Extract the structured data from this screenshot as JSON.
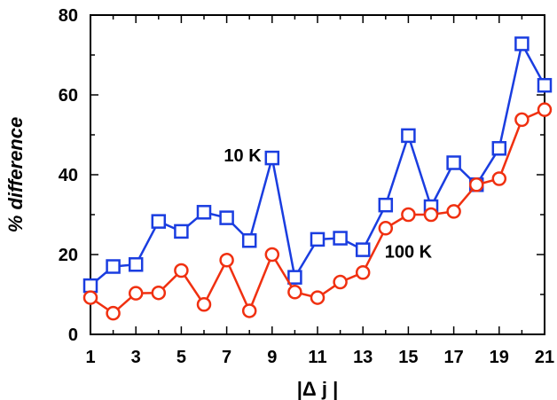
{
  "chart_data": {
    "type": "line",
    "xlabel": "|Δ j |",
    "ylabel": "% difference",
    "xlim": [
      1,
      21
    ],
    "ylim": [
      0,
      80
    ],
    "x_ticks": [
      1,
      3,
      5,
      7,
      9,
      11,
      13,
      15,
      17,
      19,
      21
    ],
    "y_ticks": [
      0,
      20,
      40,
      60,
      80
    ],
    "x": [
      1,
      2,
      3,
      4,
      5,
      6,
      7,
      8,
      9,
      10,
      11,
      12,
      13,
      14,
      15,
      16,
      17,
      18,
      19,
      20,
      21
    ],
    "series": [
      {
        "key": "10K",
        "color": "#1a3de0",
        "marker": "square",
        "values": [
          12.2,
          17.0,
          17.5,
          28.3,
          25.8,
          30.6,
          29.2,
          23.5,
          44.2,
          14.3,
          23.8,
          24.1,
          21.2,
          32.4,
          49.8,
          32.0,
          43.0,
          37.5,
          46.6,
          72.8,
          62.4
        ]
      },
      {
        "key": "100K",
        "color": "#f03010",
        "marker": "circle",
        "values": [
          9.2,
          5.3,
          10.3,
          10.4,
          16.0,
          7.5,
          18.6,
          5.9,
          20.0,
          10.6,
          9.2,
          13.1,
          15.5,
          26.6,
          30.0,
          30.0,
          30.8,
          37.5,
          39.0,
          53.8,
          56.3
        ]
      }
    ],
    "annotations": [
      {
        "text": "10 K",
        "x": 7.7,
        "y": 43.3
      },
      {
        "text": "100 K",
        "x": 15.0,
        "y": 19.2
      }
    ],
    "grid": false,
    "legend": "none"
  }
}
